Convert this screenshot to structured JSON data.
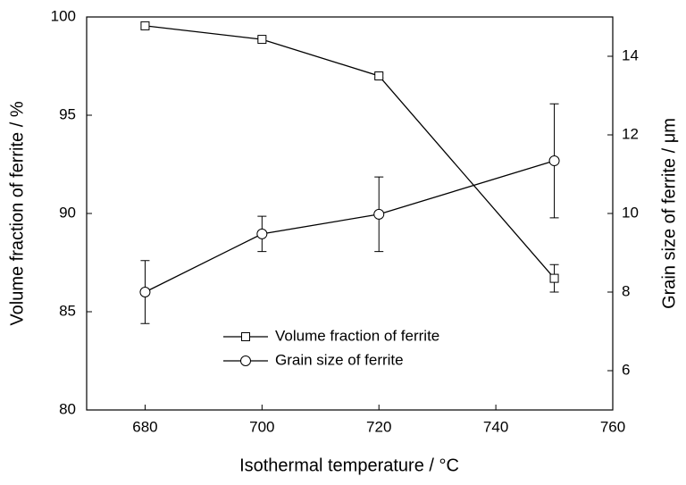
{
  "chart_data": {
    "type": "line",
    "x_label": "Isothermal temperature / °C",
    "y_label": "Volume fraction of ferrite / %",
    "y2_label": "Grain size of ferrite / μm",
    "x": [
      680,
      700,
      720,
      750
    ],
    "xlim": [
      670,
      760
    ],
    "xticks": [
      680,
      700,
      720,
      740,
      760
    ],
    "ylim": [
      80,
      100
    ],
    "yticks": [
      80,
      85,
      90,
      95,
      100
    ],
    "y2lim": [
      5,
      15
    ],
    "y2ticks": [
      6,
      8,
      10,
      12,
      14
    ],
    "series": [
      {
        "name": "Volume fraction of ferrite",
        "color": "#000000",
        "marker": "square",
        "values": [
          99.55,
          98.86,
          97.0,
          86.7
        ],
        "errors": [
          0.1,
          0.1,
          0.1,
          0.7
        ]
      },
      {
        "name": "Grain size of  ferrite",
        "color": "#000000",
        "marker": "circle",
        "axis": "y2",
        "values": [
          8.0,
          9.48,
          9.98,
          11.34
        ],
        "errors": [
          0.8,
          0.45,
          0.95,
          1.45
        ]
      }
    ]
  }
}
